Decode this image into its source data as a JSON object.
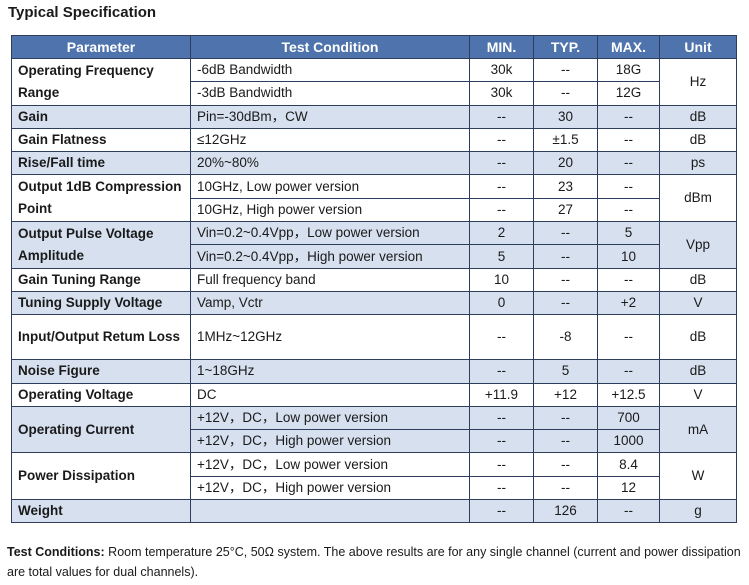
{
  "title": "Typical Specification",
  "headers": [
    "Parameter",
    "Test Condition",
    "MIN.",
    "TYP.",
    "MAX.",
    "Unit"
  ],
  "rows": [
    {
      "param": "Operating Frequency Range",
      "alt": false,
      "unit": "Hz",
      "lines": [
        {
          "cond": "-6dB Bandwidth",
          "min": "30k",
          "typ": "--",
          "max": "18G"
        },
        {
          "cond": "-3dB Bandwidth",
          "min": "30k",
          "typ": "--",
          "max": "12G"
        }
      ]
    },
    {
      "param": "Gain",
      "alt": true,
      "unit": "dB",
      "lines": [
        {
          "cond": "Pin=-30dBm，CW",
          "min": "--",
          "typ": "30",
          "max": "--"
        }
      ]
    },
    {
      "param": "Gain Flatness",
      "alt": false,
      "unit": "dB",
      "lines": [
        {
          "cond": "≤12GHz",
          "min": "--",
          "typ": "±1.5",
          "max": "--"
        }
      ]
    },
    {
      "param": "Rise/Fall time",
      "alt": true,
      "unit": "ps",
      "lines": [
        {
          "cond": "20%~80%",
          "min": "--",
          "typ": "20",
          "max": "--"
        }
      ]
    },
    {
      "param": "Output 1dB Compression Point",
      "alt": false,
      "unit": "dBm",
      "lines": [
        {
          "cond": "10GHz, Low power version",
          "min": "--",
          "typ": "23",
          "max": "--"
        },
        {
          "cond": "10GHz, High power version",
          "min": "--",
          "typ": "27",
          "max": "--"
        }
      ]
    },
    {
      "param": "Output Pulse Voltage Amplitude",
      "alt": true,
      "unit": "Vpp",
      "lines": [
        {
          "cond": "Vin=0.2~0.4Vpp，Low power version",
          "min": "2",
          "typ": "--",
          "max": "5"
        },
        {
          "cond": "Vin=0.2~0.4Vpp，High power version",
          "min": "5",
          "typ": "--",
          "max": "10"
        }
      ]
    },
    {
      "param": "Gain Tuning Range",
      "alt": false,
      "unit": "dB",
      "lines": [
        {
          "cond": "Full frequency band",
          "min": "10",
          "typ": "--",
          "max": "--"
        }
      ]
    },
    {
      "param": "Tuning Supply Voltage",
      "alt": true,
      "unit": "V",
      "lines": [
        {
          "cond": "Vamp, Vctr",
          "min": "0",
          "typ": "--",
          "max": "+2"
        }
      ]
    },
    {
      "param": "Input/Output Retum Loss",
      "alt": false,
      "unit": "dB",
      "tall": true,
      "lines": [
        {
          "cond": "1MHz~12GHz",
          "min": "--",
          "typ": "-8",
          "max": "--"
        }
      ]
    },
    {
      "param": "Noise Figure",
      "alt": true,
      "unit": "dB",
      "lines": [
        {
          "cond": "1~18GHz",
          "min": "--",
          "typ": "5",
          "max": "--"
        }
      ]
    },
    {
      "param": "Operating Voltage",
      "alt": false,
      "unit": "V",
      "lines": [
        {
          "cond": "DC",
          "min": "+11.9",
          "typ": "+12",
          "max": "+12.5"
        }
      ]
    },
    {
      "param": "Operating Current",
      "alt": true,
      "unit": "mA",
      "lines": [
        {
          "cond": "+12V，DC，Low power version",
          "min": "--",
          "typ": "--",
          "max": "700"
        },
        {
          "cond": "+12V，DC，High power version",
          "min": "--",
          "typ": "--",
          "max": "1000"
        }
      ]
    },
    {
      "param": "Power Dissipation",
      "alt": false,
      "unit": "W",
      "lines": [
        {
          "cond": "+12V，DC，Low power version",
          "min": "--",
          "typ": "--",
          "max": "8.4"
        },
        {
          "cond": "+12V，DC，High power version",
          "min": "--",
          "typ": "--",
          "max": "12"
        }
      ]
    },
    {
      "param": "Weight",
      "alt": true,
      "unit": "g",
      "lines": [
        {
          "cond": "",
          "min": "--",
          "typ": "126",
          "max": "--"
        }
      ]
    }
  ],
  "footnote": {
    "label": "Test Conditions:",
    "text": " Room temperature 25°C, 50Ω system. The above results are for any single channel (current and power dissipation are total values for dual channels)."
  }
}
